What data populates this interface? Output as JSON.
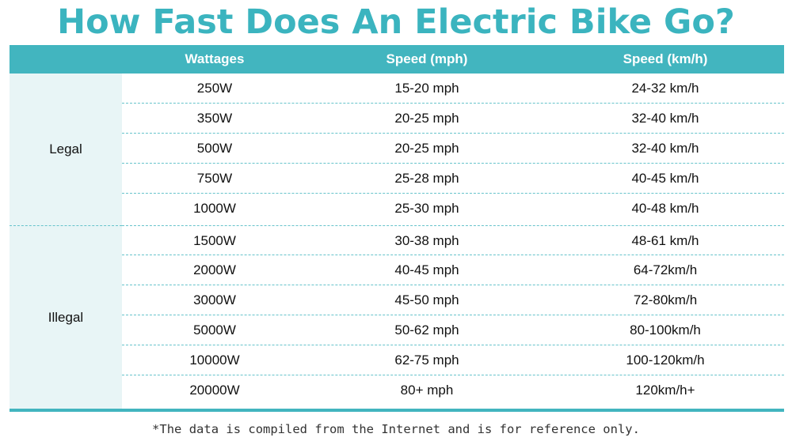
{
  "title": "How Fast Does An Electric Bike Go?",
  "table": {
    "headers": [
      "",
      "Wattages",
      "Speed (mph)",
      "Speed (km/h)"
    ],
    "groups": [
      {
        "label": "Legal",
        "rows": [
          {
            "wattage": "250W",
            "mph": "15-20 mph",
            "kmh": "24-32 km/h"
          },
          {
            "wattage": "350W",
            "mph": "20-25 mph",
            "kmh": "32-40 km/h"
          },
          {
            "wattage": "500W",
            "mph": "20-25 mph",
            "kmh": "32-40 km/h"
          },
          {
            "wattage": "750W",
            "mph": "25-28 mph",
            "kmh": "40-45 km/h"
          },
          {
            "wattage": "1000W",
            "mph": "25-30 mph",
            "kmh": "40-48 km/h"
          }
        ]
      },
      {
        "label": "Illegal",
        "rows": [
          {
            "wattage": "1500W",
            "mph": "30-38 mph",
            "kmh": "48-61 km/h"
          },
          {
            "wattage": "2000W",
            "mph": "40-45 mph",
            "kmh": "64-72km/h"
          },
          {
            "wattage": "3000W",
            "mph": "45-50 mph",
            "kmh": "72-80km/h"
          },
          {
            "wattage": "5000W",
            "mph": "50-62 mph",
            "kmh": "80-100km/h"
          },
          {
            "wattage": "10000W",
            "mph": "62-75 mph",
            "kmh": "100-120km/h"
          },
          {
            "wattage": "20000W",
            "mph": "80+ mph",
            "kmh": "120km/h+"
          }
        ]
      }
    ]
  },
  "footnote": "*The data is compiled from the Internet and is for reference only.",
  "colors": {
    "accent": "#42b5bf",
    "title": "#3bb4bf",
    "group_bg": "#e8f5f6"
  }
}
